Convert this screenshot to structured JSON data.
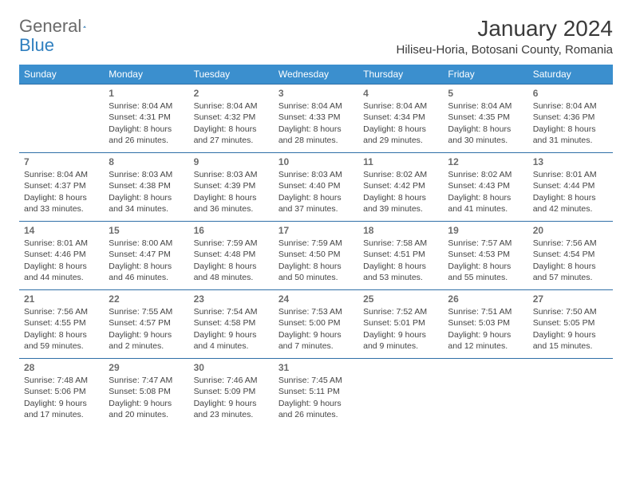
{
  "logo": {
    "general": "General",
    "blue": "Blue"
  },
  "title": "January 2024",
  "location": "Hiliseu-Horia, Botosani County, Romania",
  "colors": {
    "header_bg": "#3b8fce",
    "header_fg": "#ffffff",
    "border": "#2f6fa7",
    "text": "#444444",
    "daynum": "#6c6c6c",
    "logo_gray": "#6a6a6a",
    "logo_blue": "#2f7fbf"
  },
  "weekdays": [
    "Sunday",
    "Monday",
    "Tuesday",
    "Wednesday",
    "Thursday",
    "Friday",
    "Saturday"
  ],
  "weeks": [
    [
      null,
      {
        "d": "1",
        "sr": "8:04 AM",
        "ss": "4:31 PM",
        "dl": "8 hours and 26 minutes."
      },
      {
        "d": "2",
        "sr": "8:04 AM",
        "ss": "4:32 PM",
        "dl": "8 hours and 27 minutes."
      },
      {
        "d": "3",
        "sr": "8:04 AM",
        "ss": "4:33 PM",
        "dl": "8 hours and 28 minutes."
      },
      {
        "d": "4",
        "sr": "8:04 AM",
        "ss": "4:34 PM",
        "dl": "8 hours and 29 minutes."
      },
      {
        "d": "5",
        "sr": "8:04 AM",
        "ss": "4:35 PM",
        "dl": "8 hours and 30 minutes."
      },
      {
        "d": "6",
        "sr": "8:04 AM",
        "ss": "4:36 PM",
        "dl": "8 hours and 31 minutes."
      }
    ],
    [
      {
        "d": "7",
        "sr": "8:04 AM",
        "ss": "4:37 PM",
        "dl": "8 hours and 33 minutes."
      },
      {
        "d": "8",
        "sr": "8:03 AM",
        "ss": "4:38 PM",
        "dl": "8 hours and 34 minutes."
      },
      {
        "d": "9",
        "sr": "8:03 AM",
        "ss": "4:39 PM",
        "dl": "8 hours and 36 minutes."
      },
      {
        "d": "10",
        "sr": "8:03 AM",
        "ss": "4:40 PM",
        "dl": "8 hours and 37 minutes."
      },
      {
        "d": "11",
        "sr": "8:02 AM",
        "ss": "4:42 PM",
        "dl": "8 hours and 39 minutes."
      },
      {
        "d": "12",
        "sr": "8:02 AM",
        "ss": "4:43 PM",
        "dl": "8 hours and 41 minutes."
      },
      {
        "d": "13",
        "sr": "8:01 AM",
        "ss": "4:44 PM",
        "dl": "8 hours and 42 minutes."
      }
    ],
    [
      {
        "d": "14",
        "sr": "8:01 AM",
        "ss": "4:46 PM",
        "dl": "8 hours and 44 minutes."
      },
      {
        "d": "15",
        "sr": "8:00 AM",
        "ss": "4:47 PM",
        "dl": "8 hours and 46 minutes."
      },
      {
        "d": "16",
        "sr": "7:59 AM",
        "ss": "4:48 PM",
        "dl": "8 hours and 48 minutes."
      },
      {
        "d": "17",
        "sr": "7:59 AM",
        "ss": "4:50 PM",
        "dl": "8 hours and 50 minutes."
      },
      {
        "d": "18",
        "sr": "7:58 AM",
        "ss": "4:51 PM",
        "dl": "8 hours and 53 minutes."
      },
      {
        "d": "19",
        "sr": "7:57 AM",
        "ss": "4:53 PM",
        "dl": "8 hours and 55 minutes."
      },
      {
        "d": "20",
        "sr": "7:56 AM",
        "ss": "4:54 PM",
        "dl": "8 hours and 57 minutes."
      }
    ],
    [
      {
        "d": "21",
        "sr": "7:56 AM",
        "ss": "4:55 PM",
        "dl": "8 hours and 59 minutes."
      },
      {
        "d": "22",
        "sr": "7:55 AM",
        "ss": "4:57 PM",
        "dl": "9 hours and 2 minutes."
      },
      {
        "d": "23",
        "sr": "7:54 AM",
        "ss": "4:58 PM",
        "dl": "9 hours and 4 minutes."
      },
      {
        "d": "24",
        "sr": "7:53 AM",
        "ss": "5:00 PM",
        "dl": "9 hours and 7 minutes."
      },
      {
        "d": "25",
        "sr": "7:52 AM",
        "ss": "5:01 PM",
        "dl": "9 hours and 9 minutes."
      },
      {
        "d": "26",
        "sr": "7:51 AM",
        "ss": "5:03 PM",
        "dl": "9 hours and 12 minutes."
      },
      {
        "d": "27",
        "sr": "7:50 AM",
        "ss": "5:05 PM",
        "dl": "9 hours and 15 minutes."
      }
    ],
    [
      {
        "d": "28",
        "sr": "7:48 AM",
        "ss": "5:06 PM",
        "dl": "9 hours and 17 minutes."
      },
      {
        "d": "29",
        "sr": "7:47 AM",
        "ss": "5:08 PM",
        "dl": "9 hours and 20 minutes."
      },
      {
        "d": "30",
        "sr": "7:46 AM",
        "ss": "5:09 PM",
        "dl": "9 hours and 23 minutes."
      },
      {
        "d": "31",
        "sr": "7:45 AM",
        "ss": "5:11 PM",
        "dl": "9 hours and 26 minutes."
      },
      null,
      null,
      null
    ]
  ]
}
